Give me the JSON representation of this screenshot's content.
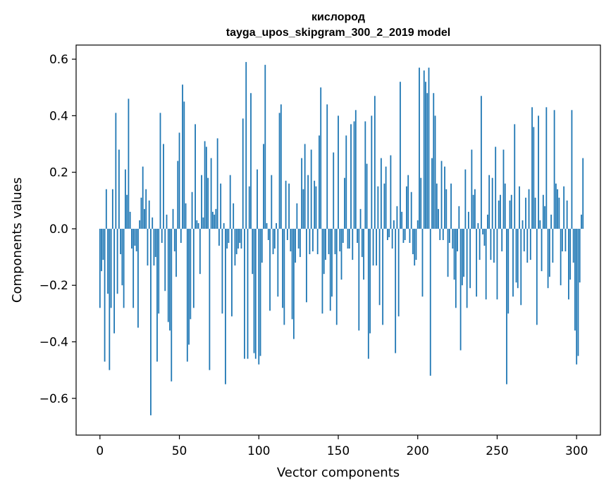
{
  "chart_data": {
    "type": "bar",
    "title": "кислород",
    "subtitle": "tayga_upos_skipgram_300_2_2019 model",
    "xlabel": "Vector components",
    "ylabel": "Components values",
    "xlim": [
      -15,
      315
    ],
    "ylim": [
      -0.73,
      0.65
    ],
    "x_ticks": [
      0,
      50,
      100,
      150,
      200,
      250,
      300
    ],
    "x_tick_labels": [
      "0",
      "50",
      "100",
      "150",
      "200",
      "250",
      "300"
    ],
    "y_ticks": [
      -0.6,
      -0.4,
      -0.2,
      0.0,
      0.2,
      0.4,
      0.6
    ],
    "y_tick_labels": [
      "−0.6",
      "−0.4",
      "−0.2",
      "0.0",
      "0.2",
      "0.4",
      "0.6"
    ],
    "bar_color": "#1f77b4",
    "grid": false,
    "values": [
      -0.28,
      -0.15,
      -0.11,
      -0.47,
      0.14,
      -0.23,
      -0.5,
      -0.28,
      0.14,
      -0.37,
      0.41,
      -0.23,
      0.28,
      -0.09,
      -0.2,
      -0.28,
      0.21,
      0.12,
      0.46,
      0.06,
      -0.07,
      -0.28,
      -0.06,
      -0.08,
      -0.35,
      0.03,
      0.11,
      0.22,
      0.07,
      0.14,
      -0.13,
      0.1,
      -0.66,
      0.04,
      -0.13,
      -0.1,
      -0.47,
      -0.3,
      0.41,
      -0.05,
      0.3,
      -0.22,
      0.05,
      -0.33,
      -0.36,
      -0.54,
      0.07,
      -0.08,
      -0.17,
      0.24,
      0.34,
      -0.05,
      0.51,
      0.45,
      0.09,
      -0.47,
      -0.41,
      -0.32,
      0.13,
      -0.28,
      0.37,
      0.03,
      0.02,
      -0.16,
      0.19,
      0.04,
      0.31,
      0.29,
      0.18,
      -0.5,
      0.25,
      0.06,
      0.05,
      0.07,
      0.32,
      -0.06,
      0.16,
      -0.3,
      0.02,
      -0.55,
      -0.07,
      -0.05,
      0.19,
      -0.31,
      0.09,
      -0.13,
      -0.09,
      -0.07,
      -0.05,
      -0.07,
      0.39,
      -0.46,
      0.59,
      -0.46,
      0.15,
      0.48,
      -0.16,
      -0.44,
      -0.46,
      0.21,
      -0.48,
      -0.45,
      -0.12,
      0.3,
      0.58,
      0.02,
      -0.04,
      -0.29,
      0.19,
      -0.09,
      -0.07,
      0.02,
      -0.24,
      0.41,
      0.44,
      -0.28,
      -0.34,
      0.17,
      -0.04,
      0.16,
      -0.08,
      -0.32,
      -0.39,
      -0.12,
      0.09,
      -0.07,
      -0.1,
      0.25,
      0.14,
      0.3,
      -0.26,
      0.19,
      -0.09,
      0.28,
      -0.08,
      0.17,
      0.15,
      -0.09,
      0.33,
      0.5,
      -0.3,
      -0.16,
      -0.11,
      0.44,
      -0.09,
      -0.29,
      -0.24,
      0.27,
      -0.09,
      -0.34,
      0.4,
      -0.08,
      -0.18,
      -0.05,
      0.18,
      0.33,
      -0.07,
      -0.07,
      0.37,
      -0.11,
      0.38,
      0.42,
      -0.05,
      -0.36,
      0.07,
      -0.1,
      -0.18,
      0.38,
      0.23,
      -0.46,
      -0.37,
      0.4,
      -0.13,
      0.47,
      -0.13,
      0.15,
      -0.27,
      0.25,
      -0.34,
      0.16,
      0.22,
      -0.04,
      -0.03,
      0.26,
      -0.07,
      0.03,
      -0.44,
      0.08,
      -0.31,
      0.52,
      0.06,
      -0.05,
      -0.04,
      0.15,
      0.19,
      -0.05,
      0.13,
      -0.09,
      -0.13,
      -0.11,
      0.03,
      0.57,
      0.18,
      -0.24,
      0.56,
      0.52,
      0.48,
      0.57,
      -0.52,
      0.25,
      0.48,
      0.4,
      0.16,
      0.07,
      -0.04,
      0.24,
      -0.04,
      0.22,
      0.14,
      -0.17,
      -0.05,
      0.16,
      -0.07,
      -0.18,
      -0.28,
      -0.08,
      0.08,
      -0.43,
      -0.2,
      -0.17,
      0.21,
      -0.28,
      0.06,
      -0.21,
      0.28,
      0.12,
      0.14,
      -0.24,
      0.02,
      -0.11,
      0.47,
      -0.02,
      -0.06,
      -0.25,
      0.05,
      0.19,
      -0.11,
      0.18,
      -0.12,
      0.29,
      -0.25,
      0.1,
      0.12,
      -0.08,
      0.28,
      0.16,
      -0.55,
      -0.3,
      0.1,
      0.12,
      -0.24,
      0.37,
      -0.19,
      -0.21,
      0.15,
      -0.27,
      0.03,
      -0.08,
      0.11,
      -0.12,
      0.14,
      -0.11,
      0.43,
      0.36,
      0.11,
      -0.34,
      0.4,
      0.03,
      -0.15,
      0.12,
      0.08,
      0.43,
      -0.21,
      -0.17,
      0.05,
      -0.12,
      0.42,
      0.16,
      0.14,
      0.11,
      -0.2,
      -0.08,
      0.15,
      -0.08,
      0.1,
      -0.25,
      -0.18,
      0.42,
      -0.12,
      -0.36,
      -0.48,
      -0.45,
      -0.19,
      0.05,
      0.25
    ]
  }
}
